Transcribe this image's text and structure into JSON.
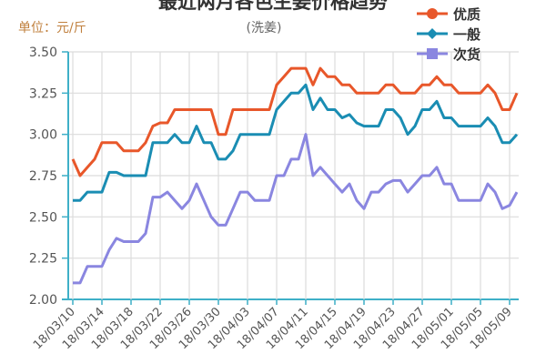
{
  "chart_data": {
    "type": "line",
    "title": "最近两月各色生姜价格趋势",
    "subtitle": "(洗姜)",
    "ylabel": "单位：元/斤",
    "xlabel": "",
    "ylim": [
      2.0,
      3.5
    ],
    "yticks": [
      "2.00",
      "2.25",
      "2.50",
      "2.75",
      "3.00",
      "3.25",
      "3.50"
    ],
    "xtick_labels": [
      "18/03/10",
      "18/03/14",
      "18/03/18",
      "18/03/22",
      "18/03/26",
      "18/03/30",
      "18/04/03",
      "18/04/07",
      "18/04/11",
      "18/04/15",
      "18/04/19",
      "18/04/23",
      "18/04/27",
      "18/05/01",
      "18/05/05",
      "18/05/09"
    ],
    "x_start": "18/03/10",
    "x_step_days": 1,
    "grid": true,
    "legend_position": "top-right",
    "series": [
      {
        "name": "优质",
        "color": "#e8572a",
        "marker": "circle",
        "values": [
          2.85,
          2.75,
          2.8,
          2.85,
          2.95,
          2.95,
          2.95,
          2.9,
          2.9,
          2.9,
          2.95,
          3.05,
          3.07,
          3.07,
          3.15,
          3.15,
          3.15,
          3.15,
          3.15,
          3.15,
          3.0,
          3.0,
          3.15,
          3.15,
          3.15,
          3.15,
          3.15,
          3.15,
          3.3,
          3.35,
          3.4,
          3.4,
          3.4,
          3.3,
          3.4,
          3.35,
          3.35,
          3.3,
          3.3,
          3.25,
          3.25,
          3.25,
          3.25,
          3.3,
          3.3,
          3.25,
          3.25,
          3.25,
          3.3,
          3.3,
          3.35,
          3.3,
          3.3,
          3.25,
          3.25,
          3.25,
          3.25,
          3.3,
          3.25,
          3.15,
          3.15,
          3.25
        ]
      },
      {
        "name": "一般",
        "color": "#1a8db3",
        "marker": "diamond",
        "values": [
          2.6,
          2.6,
          2.65,
          2.65,
          2.65,
          2.77,
          2.77,
          2.75,
          2.75,
          2.75,
          2.75,
          2.95,
          2.95,
          2.95,
          3.0,
          2.95,
          2.95,
          3.05,
          2.95,
          2.95,
          2.85,
          2.85,
          2.9,
          3.0,
          3.0,
          3.0,
          3.0,
          3.0,
          3.15,
          3.2,
          3.25,
          3.25,
          3.3,
          3.15,
          3.22,
          3.15,
          3.15,
          3.1,
          3.12,
          3.07,
          3.05,
          3.05,
          3.05,
          3.15,
          3.15,
          3.1,
          3.0,
          3.05,
          3.15,
          3.15,
          3.2,
          3.1,
          3.1,
          3.05,
          3.05,
          3.05,
          3.05,
          3.1,
          3.05,
          2.95,
          2.95,
          3.0
        ]
      },
      {
        "name": "次货",
        "color": "#8a86e0",
        "marker": "square",
        "values": [
          2.1,
          2.1,
          2.2,
          2.2,
          2.2,
          2.3,
          2.37,
          2.35,
          2.35,
          2.35,
          2.4,
          2.62,
          2.62,
          2.65,
          2.6,
          2.55,
          2.6,
          2.7,
          2.6,
          2.5,
          2.45,
          2.45,
          2.55,
          2.65,
          2.65,
          2.6,
          2.6,
          2.6,
          2.75,
          2.75,
          2.85,
          2.85,
          3.0,
          2.75,
          2.8,
          2.75,
          2.7,
          2.65,
          2.7,
          2.6,
          2.55,
          2.65,
          2.65,
          2.7,
          2.72,
          2.72,
          2.65,
          2.7,
          2.75,
          2.75,
          2.8,
          2.7,
          2.7,
          2.6,
          2.6,
          2.6,
          2.6,
          2.7,
          2.65,
          2.55,
          2.57,
          2.65
        ]
      }
    ]
  }
}
